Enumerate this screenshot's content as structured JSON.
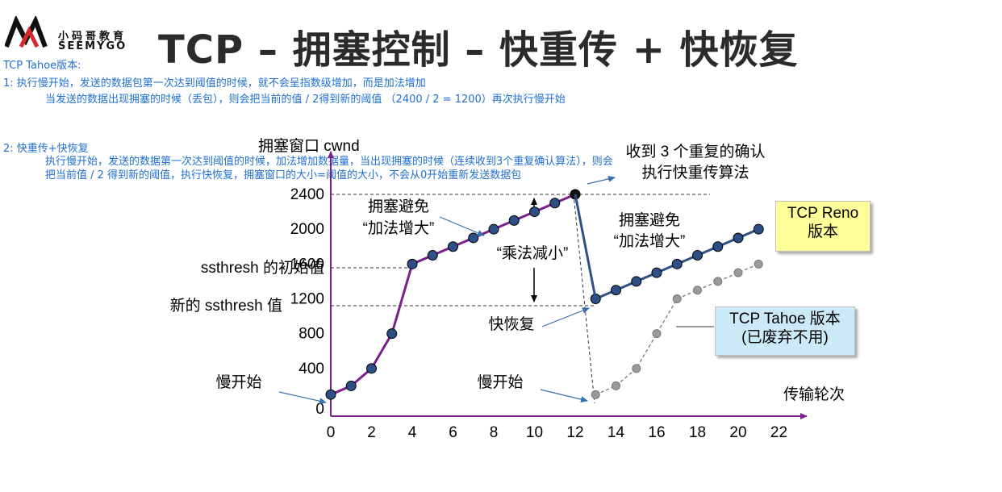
{
  "logo": {
    "name_cn": "小码哥教育",
    "name_en": "SEEMYGO"
  },
  "title": "TCP – 拥塞控制 – 快重传 + 快恢复",
  "notes": {
    "tahoe_heading": "TCP Tahoe版本:",
    "tahoe_step1": "1:   执行慢开始，发送的数据包第一次达到阈值的时候，就不会呈指数级增加，而是加法增加",
    "tahoe_step1_cont": "当发送的数据出现拥塞的时候（丢包），则会把当前的值 / 2得到新的阈值 （2400 / 2 = 1200）再次执行慢开始",
    "reno_heading": "2:  快重传+快恢复",
    "reno_text": "执行慢开始，发送的数据第一次达到阈值的时候，加法增加数据量，当出现拥塞的时候（连续收到3个重复确认算法），则会把当前值 / 2 得到新的阈值，执行快恢复，拥塞窗口的大小=阈值的大小，不会从0开始重新发送数据包"
  },
  "colors": {
    "slow_start_line": "#7b1f8c",
    "reno_line": "#2d4f86",
    "tahoe_line": "#777777",
    "axis": "#7b1f8c",
    "note_text": "#1f6fd1",
    "reno_box": "#ffff99",
    "tahoe_box": "#cce9f7"
  },
  "chart_data": {
    "type": "line",
    "ylabel": "拥塞窗口 cwnd",
    "xlabel": "传输轮次",
    "xlim": [
      0,
      22
    ],
    "ylim": [
      0,
      2400
    ],
    "x_ticks": [
      0,
      2,
      4,
      6,
      8,
      10,
      12,
      14,
      16,
      18,
      20,
      22
    ],
    "y_ticks": [
      0,
      400,
      800,
      1200,
      1600,
      2000,
      2400
    ],
    "ssthresh_initial": 1600,
    "ssthresh_new": 1200,
    "series": [
      {
        "x": [
          0,
          1,
          2,
          3,
          4,
          5,
          6,
          7,
          8,
          9,
          10,
          11,
          12
        ],
        "y": [
          100,
          200,
          400,
          800,
          1600,
          1700,
          1800,
          1900,
          2000,
          2100,
          2200,
          2300,
          2400
        ]
      },
      {
        "x": [
          13,
          14,
          15,
          16,
          17,
          18,
          19,
          20,
          21
        ],
        "y": [
          1200,
          1300,
          1400,
          1500,
          1600,
          1700,
          1800,
          1900,
          2000
        ]
      },
      {
        "x": [
          13,
          14,
          15,
          16,
          17,
          18,
          19,
          20,
          21
        ],
        "y": [
          100,
          200,
          400,
          800,
          1200,
          1300,
          1400,
          1500,
          1600
        ]
      }
    ],
    "annotations": {
      "ssthresh_initial_label": "ssthresh 的初始值",
      "ssthresh_new_label": "新的 ssthresh 值",
      "dup_ack": "收到 3 个重复的确认",
      "fast_retransmit": "执行快重传算法",
      "ca1_line1": "拥塞避免",
      "ca1_line2": "“加法增大”",
      "ca2_line1": "拥塞避免",
      "ca2_line2": "“加法增大”",
      "multiplicative_decrease": "“乘法减小”",
      "fast_recovery": "快恢复",
      "slow_start_1": "慢开始",
      "slow_start_2": "慢开始",
      "reno_box_line1": "TCP Reno",
      "reno_box_line2": "版本",
      "tahoe_box_line1": "TCP Tahoe 版本",
      "tahoe_box_line2": "(已废弃不用)"
    }
  }
}
